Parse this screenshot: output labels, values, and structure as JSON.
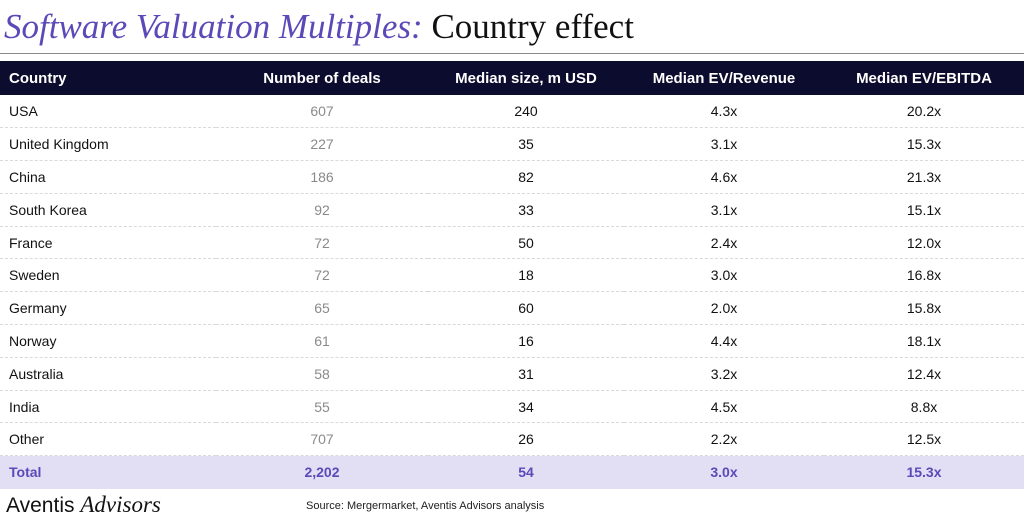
{
  "chart_data": {
    "type": "table",
    "title": {
      "italic": "Software Valuation Multiples:",
      "regular": "Country effect"
    },
    "columns": [
      "Country",
      "Number of deals",
      "Median size, m USD",
      "Median EV/Revenue",
      "Median EV/EBITDA"
    ],
    "rows": [
      [
        "USA",
        "607",
        "240",
        "4.3x",
        "20.2x"
      ],
      [
        "United Kingdom",
        "227",
        "35",
        "3.1x",
        "15.3x"
      ],
      [
        "China",
        "186",
        "82",
        "4.6x",
        "21.3x"
      ],
      [
        "South Korea",
        "92",
        "33",
        "3.1x",
        "15.1x"
      ],
      [
        "France",
        "72",
        "50",
        "2.4x",
        "12.0x"
      ],
      [
        "Sweden",
        "72",
        "18",
        "3.0x",
        "16.8x"
      ],
      [
        "Germany",
        "65",
        "60",
        "2.0x",
        "15.8x"
      ],
      [
        "Norway",
        "61",
        "16",
        "4.4x",
        "18.1x"
      ],
      [
        "Australia",
        "58",
        "31",
        "3.2x",
        "12.4x"
      ],
      [
        "India",
        "55",
        "34",
        "4.5x",
        "8.8x"
      ],
      [
        "Other",
        "707",
        "26",
        "2.2x",
        "12.5x"
      ]
    ],
    "total": [
      "Total",
      "2,202",
      "54",
      "3.0x",
      "15.3x"
    ]
  },
  "footer": {
    "brand_regular": "Aventis",
    "brand_italic": "Advisors",
    "source": "Source: Mergermarket, Aventis Advisors analysis"
  },
  "colors": {
    "accent": "#5b49b8",
    "header_bg": "#0c0c2e",
    "total_bg": "#e2def4",
    "deals_text": "#8a8a8a"
  }
}
